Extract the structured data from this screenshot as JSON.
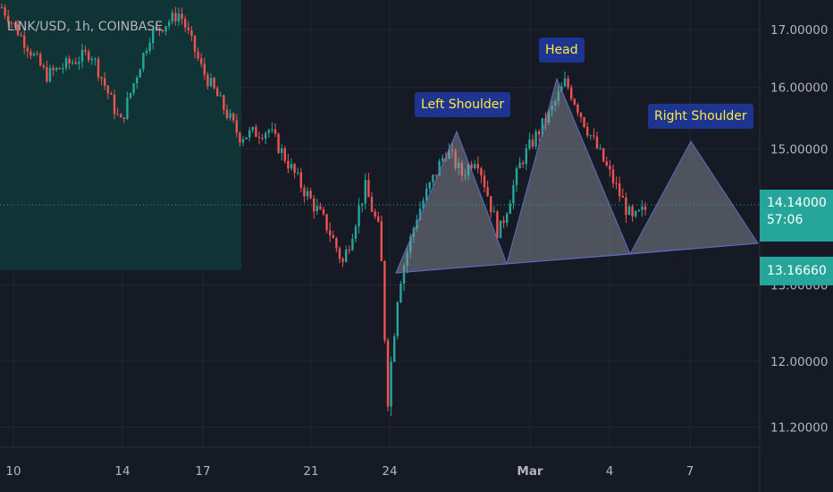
{
  "header": {
    "title": "LINK/USD, 1h, COINBASE"
  },
  "price_tags": {
    "last_price": "14.14000",
    "countdown": "57:06",
    "neckline": "13.16660"
  },
  "labels": {
    "left_shoulder": "Left Shoulder",
    "head": "Head",
    "right_shoulder": "Right Shoulder"
  },
  "colors": {
    "background": "#161a25",
    "up_candle": "#26a69a",
    "down_candle": "#ef5350",
    "pattern_fill": "#9598a1",
    "pattern_stroke": "#5c6bc0",
    "label_bg": "#1e3491",
    "label_text": "#ffeb3b",
    "highlight_zone": "#0f3a3a"
  },
  "chart_data": {
    "type": "candlestick",
    "title": "LINK/USD, 1h, COINBASE",
    "y_scale": "log",
    "ylim": [
      11.0,
      17.5
    ],
    "y_ticks": [
      {
        "value": 17.0,
        "label": "17.00000"
      },
      {
        "value": 16.0,
        "label": "16.00000"
      },
      {
        "value": 15.0,
        "label": "15.00000"
      },
      {
        "value": 13.0,
        "label": "13.00000"
      },
      {
        "value": 12.0,
        "label": "12.00000"
      },
      {
        "value": 11.2,
        "label": "11.20000"
      }
    ],
    "x_ticks": [
      "10",
      "14",
      "17",
      "21",
      "24",
      "Mar",
      "4",
      "7"
    ],
    "last_price": 14.14,
    "neckline_price": 13.1666,
    "pattern": "head-and-shoulders",
    "price_path": [
      {
        "t": 0,
        "p": 17.4
      },
      {
        "t": 0.06,
        "p": 16.2
      },
      {
        "t": 0.12,
        "p": 16.6
      },
      {
        "t": 0.16,
        "p": 15.4
      },
      {
        "t": 0.2,
        "p": 16.9
      },
      {
        "t": 0.24,
        "p": 17.3
      },
      {
        "t": 0.27,
        "p": 16.3
      },
      {
        "t": 0.32,
        "p": 15.2
      },
      {
        "t": 0.36,
        "p": 15.3
      },
      {
        "t": 0.4,
        "p": 14.5
      },
      {
        "t": 0.44,
        "p": 13.8
      },
      {
        "t": 0.46,
        "p": 13.3
      },
      {
        "t": 0.49,
        "p": 14.4
      },
      {
        "t": 0.51,
        "p": 13.7
      },
      {
        "t": 0.52,
        "p": 11.5
      },
      {
        "t": 0.535,
        "p": 13.0
      },
      {
        "t": 0.56,
        "p": 14.0
      },
      {
        "t": 0.6,
        "p": 15.0
      },
      {
        "t": 0.62,
        "p": 14.6
      },
      {
        "t": 0.64,
        "p": 14.9
      },
      {
        "t": 0.67,
        "p": 13.7
      },
      {
        "t": 0.7,
        "p": 14.8
      },
      {
        "t": 0.74,
        "p": 15.6
      },
      {
        "t": 0.76,
        "p": 16.1
      },
      {
        "t": 0.79,
        "p": 15.3
      },
      {
        "t": 0.82,
        "p": 14.6
      },
      {
        "t": 0.85,
        "p": 13.9
      },
      {
        "t": 0.87,
        "p": 14.1
      }
    ]
  }
}
